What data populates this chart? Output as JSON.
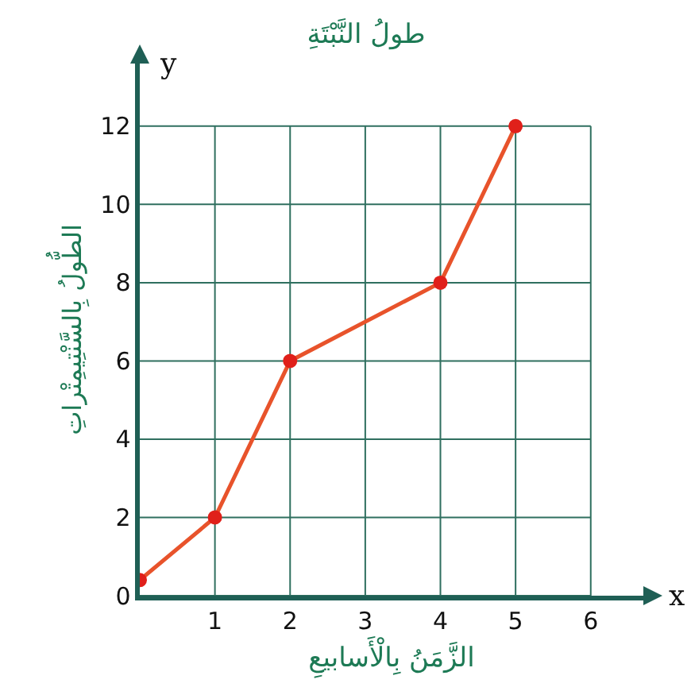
{
  "chart_data": {
    "type": "line",
    "title": "طولُ النَّبْتَةِ",
    "xlabel": "الزَّمَنُ بِالْأَسابيعِ",
    "ylabel": "الطُّولُ بِالسَّنْتِيمِتْراتِ",
    "annotations": [
      "x",
      "y"
    ],
    "x": [
      0,
      1,
      2,
      4,
      5
    ],
    "series": [
      {
        "color": "#e8532b",
        "values": [
          0.4,
          2,
          6,
          8,
          12
        ]
      }
    ],
    "marker": "circle",
    "line_style": "solid",
    "grid": true,
    "xlim": [
      0,
      6.7
    ],
    "ylim": [
      0,
      13.6
    ],
    "xticks": [
      1,
      2,
      3,
      4,
      5,
      6
    ],
    "yticks": [
      0,
      2,
      4,
      6,
      8,
      10,
      12
    ]
  }
}
